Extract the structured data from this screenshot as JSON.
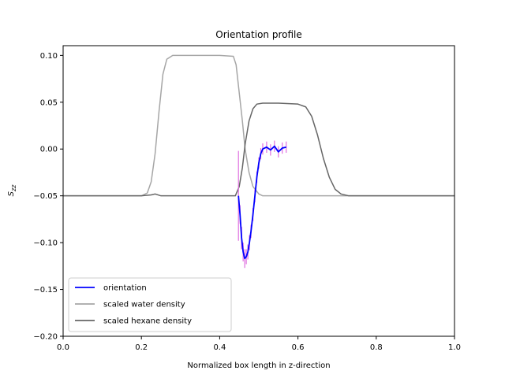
{
  "chart_data": {
    "type": "line",
    "title": "Orientation profile",
    "xlabel": "Normalized box length in z-direction",
    "ylabel": "S",
    "ylabel_subscript": "zz",
    "xlim": [
      0.0,
      1.0
    ],
    "ylim": [
      -0.2,
      0.11
    ],
    "xticks": [
      0.0,
      0.2,
      0.4,
      0.6,
      0.8,
      1.0
    ],
    "xtick_labels": [
      "0.0",
      "0.2",
      "0.4",
      "0.6",
      "0.8",
      "1.0"
    ],
    "yticks": [
      0.1,
      0.05,
      0.0,
      -0.05,
      -0.1,
      -0.15,
      -0.2
    ],
    "ytick_labels": [
      "0.10",
      "0.05",
      "0.00",
      "−0.05",
      "−0.10",
      "−0.15",
      "−0.20"
    ],
    "grid": false,
    "legend_position": "lower-left",
    "series": [
      {
        "name": "orientation",
        "color": "#0000ff",
        "error_color": "#e070e0",
        "x": [
          0.448,
          0.452,
          0.456,
          0.46,
          0.464,
          0.468,
          0.472,
          0.476,
          0.48,
          0.485,
          0.49,
          0.495,
          0.5,
          0.505,
          0.51,
          0.52,
          0.53,
          0.54,
          0.55,
          0.56,
          0.57
        ],
        "y": [
          -0.05,
          -0.07,
          -0.095,
          -0.11,
          -0.117,
          -0.115,
          -0.11,
          -0.1,
          -0.088,
          -0.07,
          -0.05,
          -0.03,
          -0.015,
          -0.005,
          0.0,
          0.002,
          -0.001,
          0.003,
          -0.003,
          0.001,
          0.002
        ],
        "err": [
          0.048,
          0.01,
          0.012,
          0.01,
          0.01,
          0.008,
          0.008,
          0.008,
          0.007,
          0.007,
          0.007,
          0.006,
          0.006,
          0.006,
          0.006,
          0.006,
          0.006,
          0.006,
          0.006,
          0.006,
          0.006
        ]
      },
      {
        "name": "scaled water density",
        "color": "#a6a6a6",
        "x": [
          0.0,
          0.2,
          0.215,
          0.225,
          0.235,
          0.245,
          0.255,
          0.265,
          0.28,
          0.3,
          0.35,
          0.4,
          0.435,
          0.442,
          0.45,
          0.458,
          0.465,
          0.475,
          0.485,
          0.5,
          0.51,
          1.0
        ],
        "y": [
          -0.05,
          -0.05,
          -0.047,
          -0.035,
          -0.005,
          0.04,
          0.08,
          0.096,
          0.1,
          0.1,
          0.1,
          0.1,
          0.099,
          0.09,
          0.06,
          0.03,
          0.0,
          -0.025,
          -0.04,
          -0.048,
          -0.05,
          -0.05
        ]
      },
      {
        "name": "scaled hexane density",
        "color": "#666666",
        "x": [
          0.0,
          0.2,
          0.225,
          0.235,
          0.25,
          0.44,
          0.45,
          0.458,
          0.465,
          0.475,
          0.485,
          0.495,
          0.51,
          0.55,
          0.6,
          0.62,
          0.635,
          0.65,
          0.665,
          0.68,
          0.695,
          0.71,
          0.73,
          1.0
        ],
        "y": [
          -0.05,
          -0.05,
          -0.049,
          -0.048,
          -0.05,
          -0.05,
          -0.04,
          -0.02,
          0.005,
          0.03,
          0.043,
          0.048,
          0.049,
          0.049,
          0.048,
          0.045,
          0.035,
          0.015,
          -0.01,
          -0.03,
          -0.043,
          -0.048,
          -0.05,
          -0.05
        ]
      }
    ]
  }
}
